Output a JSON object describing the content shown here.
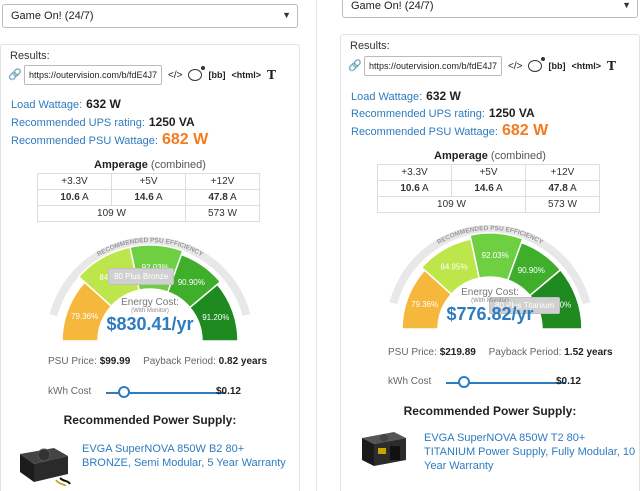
{
  "left": {
    "select_value": "Game On! (24/7)",
    "results_label": "Results:",
    "share_url": "https://outervision.com/b/fdE4J7",
    "share_icons": {
      "embed": "</>",
      "bb": "[bb]",
      "html": "<html>",
      "text": "T"
    },
    "load_wattage": {
      "label": "Load Wattage:",
      "value": "632 W"
    },
    "ups_rating": {
      "label": "Recommended UPS rating:",
      "value": "1250 VA"
    },
    "psu_wattage": {
      "label": "Recommended PSU Wattage:",
      "value": "682 W"
    },
    "amperage": {
      "title": "Amperage",
      "subtitle": "(combined)",
      "headers": [
        "+3.3V",
        "+5V",
        "+12V"
      ],
      "amps": [
        "10.6",
        "14.6",
        "47.8"
      ],
      "unit": "A",
      "watts_left": "109 W",
      "watts_right": "573 W"
    },
    "gauge": {
      "arc_text": "RECOMMENDED PSU EFFICIENCY",
      "segments": [
        "79.36%",
        "84.95%",
        "92.03%",
        "90.90%",
        "91.20%"
      ],
      "selected_segment": 1,
      "tooltip": "80 Plus Bronze"
    },
    "energy": {
      "caption": "Energy Cost:",
      "sub": "(With Monitor)",
      "value": "$830.41/yr"
    },
    "psu_price": {
      "label": "PSU Price:",
      "value": "$99.99"
    },
    "payback": {
      "label": "Payback Period:",
      "value": "0.82 years"
    },
    "kwh": {
      "label": "kWh Cost",
      "value": "$0.12",
      "slider_fraction": 0.15
    },
    "recommended_title": "Recommended Power Supply:",
    "product": {
      "name": "EVGA SuperNOVA 850W B2 80+ BRONZE, Semi Modular, 5 Year Warranty"
    }
  },
  "right": {
    "select_value": "Game On! (24/7)",
    "results_label": "Results:",
    "share_url": "https://outervision.com/b/fdE4J7",
    "share_icons": {
      "embed": "</>",
      "bb": "[bb]",
      "html": "<html>",
      "text": "T"
    },
    "load_wattage": {
      "label": "Load Wattage:",
      "value": "632 W"
    },
    "ups_rating": {
      "label": "Recommended UPS rating:",
      "value": "1250 VA"
    },
    "psu_wattage": {
      "label": "Recommended PSU Wattage:",
      "value": "682 W"
    },
    "amperage": {
      "title": "Amperage",
      "subtitle": "(combined)",
      "headers": [
        "+3.3V",
        "+5V",
        "+12V"
      ],
      "amps": [
        "10.6",
        "14.6",
        "47.8"
      ],
      "unit": "A",
      "watts_left": "109 W",
      "watts_right": "573 W"
    },
    "gauge": {
      "arc_text": "RECOMMENDED PSU EFFICIENCY",
      "segments": [
        "79.36%",
        "84.95%",
        "92.03%",
        "90.90%",
        "91.20%"
      ],
      "selected_segment": 4,
      "tooltip": "80 Plus Titanium"
    },
    "energy": {
      "caption": "Energy Cost:",
      "sub": "(With Monitor)",
      "value": "$776.82/yr"
    },
    "psu_price": {
      "label": "PSU Price:",
      "value": "$219.89"
    },
    "payback": {
      "label": "Payback Period:",
      "value": "1.52 years"
    },
    "kwh": {
      "label": "kWh Cost",
      "value": "$0.12",
      "slider_fraction": 0.15
    },
    "recommended_title": "Recommended Power Supply:",
    "product": {
      "name": "EVGA SuperNOVA 850W T2 80+ TITANIUM Power Supply, Fully Modular, 10 Year Warranty"
    }
  },
  "colors": {
    "accent": "#2e7bbf",
    "highlight": "#f47b20",
    "seg_1": "#f6b83c",
    "seg_2": "#bde64a",
    "seg_3": "#6fcf42",
    "seg_4": "#3fae2a",
    "seg_5": "#1f8a1f"
  }
}
